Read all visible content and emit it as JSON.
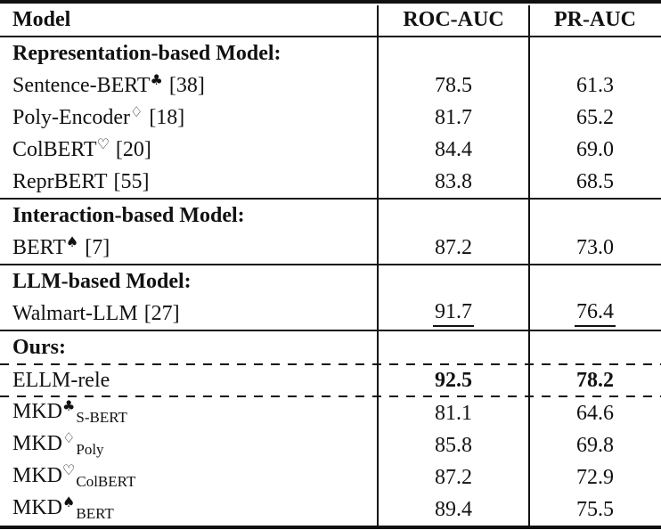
{
  "table": {
    "columns": {
      "model": "Model",
      "roc": "ROC-AUC",
      "pr": "PR-AUC"
    },
    "rows": [
      {
        "type": "section",
        "label": "Representation-based Model:"
      },
      {
        "type": "model",
        "name": "Sentence-BERT",
        "sup": "♣",
        "cite": "[38]",
        "roc": "78.5",
        "pr": "61.3"
      },
      {
        "type": "model",
        "name": "Poly-Encoder",
        "sup": "♢",
        "cite": "[18]",
        "roc": "81.7",
        "pr": "65.2"
      },
      {
        "type": "model",
        "name": "ColBERT",
        "sup": "♡",
        "cite": "[20]",
        "roc": "84.4",
        "pr": "69.0"
      },
      {
        "type": "model",
        "name": "ReprBERT",
        "cite": "[55]",
        "roc": "83.8",
        "pr": "68.5"
      },
      {
        "type": "section",
        "label": "Interaction-based Model:"
      },
      {
        "type": "model",
        "name": "BERT",
        "sup": "♠",
        "cite": "[7]",
        "roc": "87.2",
        "pr": "73.0"
      },
      {
        "type": "section",
        "label": "LLM-based Model:"
      },
      {
        "type": "model",
        "name": "Walmart-LLM",
        "cite": "[27]",
        "roc": "91.7",
        "pr": "76.4",
        "emphasis": "underline"
      },
      {
        "type": "section",
        "label": "Ours:"
      },
      {
        "type": "model",
        "name": "ELLM-rele",
        "roc": "92.5",
        "pr": "78.2",
        "emphasis": "bold"
      },
      {
        "type": "model",
        "name": "MKD",
        "sup": "♣",
        "sub": "S-BERT",
        "roc": "81.1",
        "pr": "64.6"
      },
      {
        "type": "model",
        "name": "MKD",
        "sup": "♢",
        "sub": "Poly",
        "roc": "85.8",
        "pr": "69.8"
      },
      {
        "type": "model",
        "name": "MKD",
        "sup": "♡",
        "sub": "ColBERT",
        "roc": "87.2",
        "pr": "72.9"
      },
      {
        "type": "model",
        "name": "MKD",
        "sup": "♠",
        "sub": "BERT",
        "roc": "89.4",
        "pr": "75.5"
      }
    ]
  }
}
